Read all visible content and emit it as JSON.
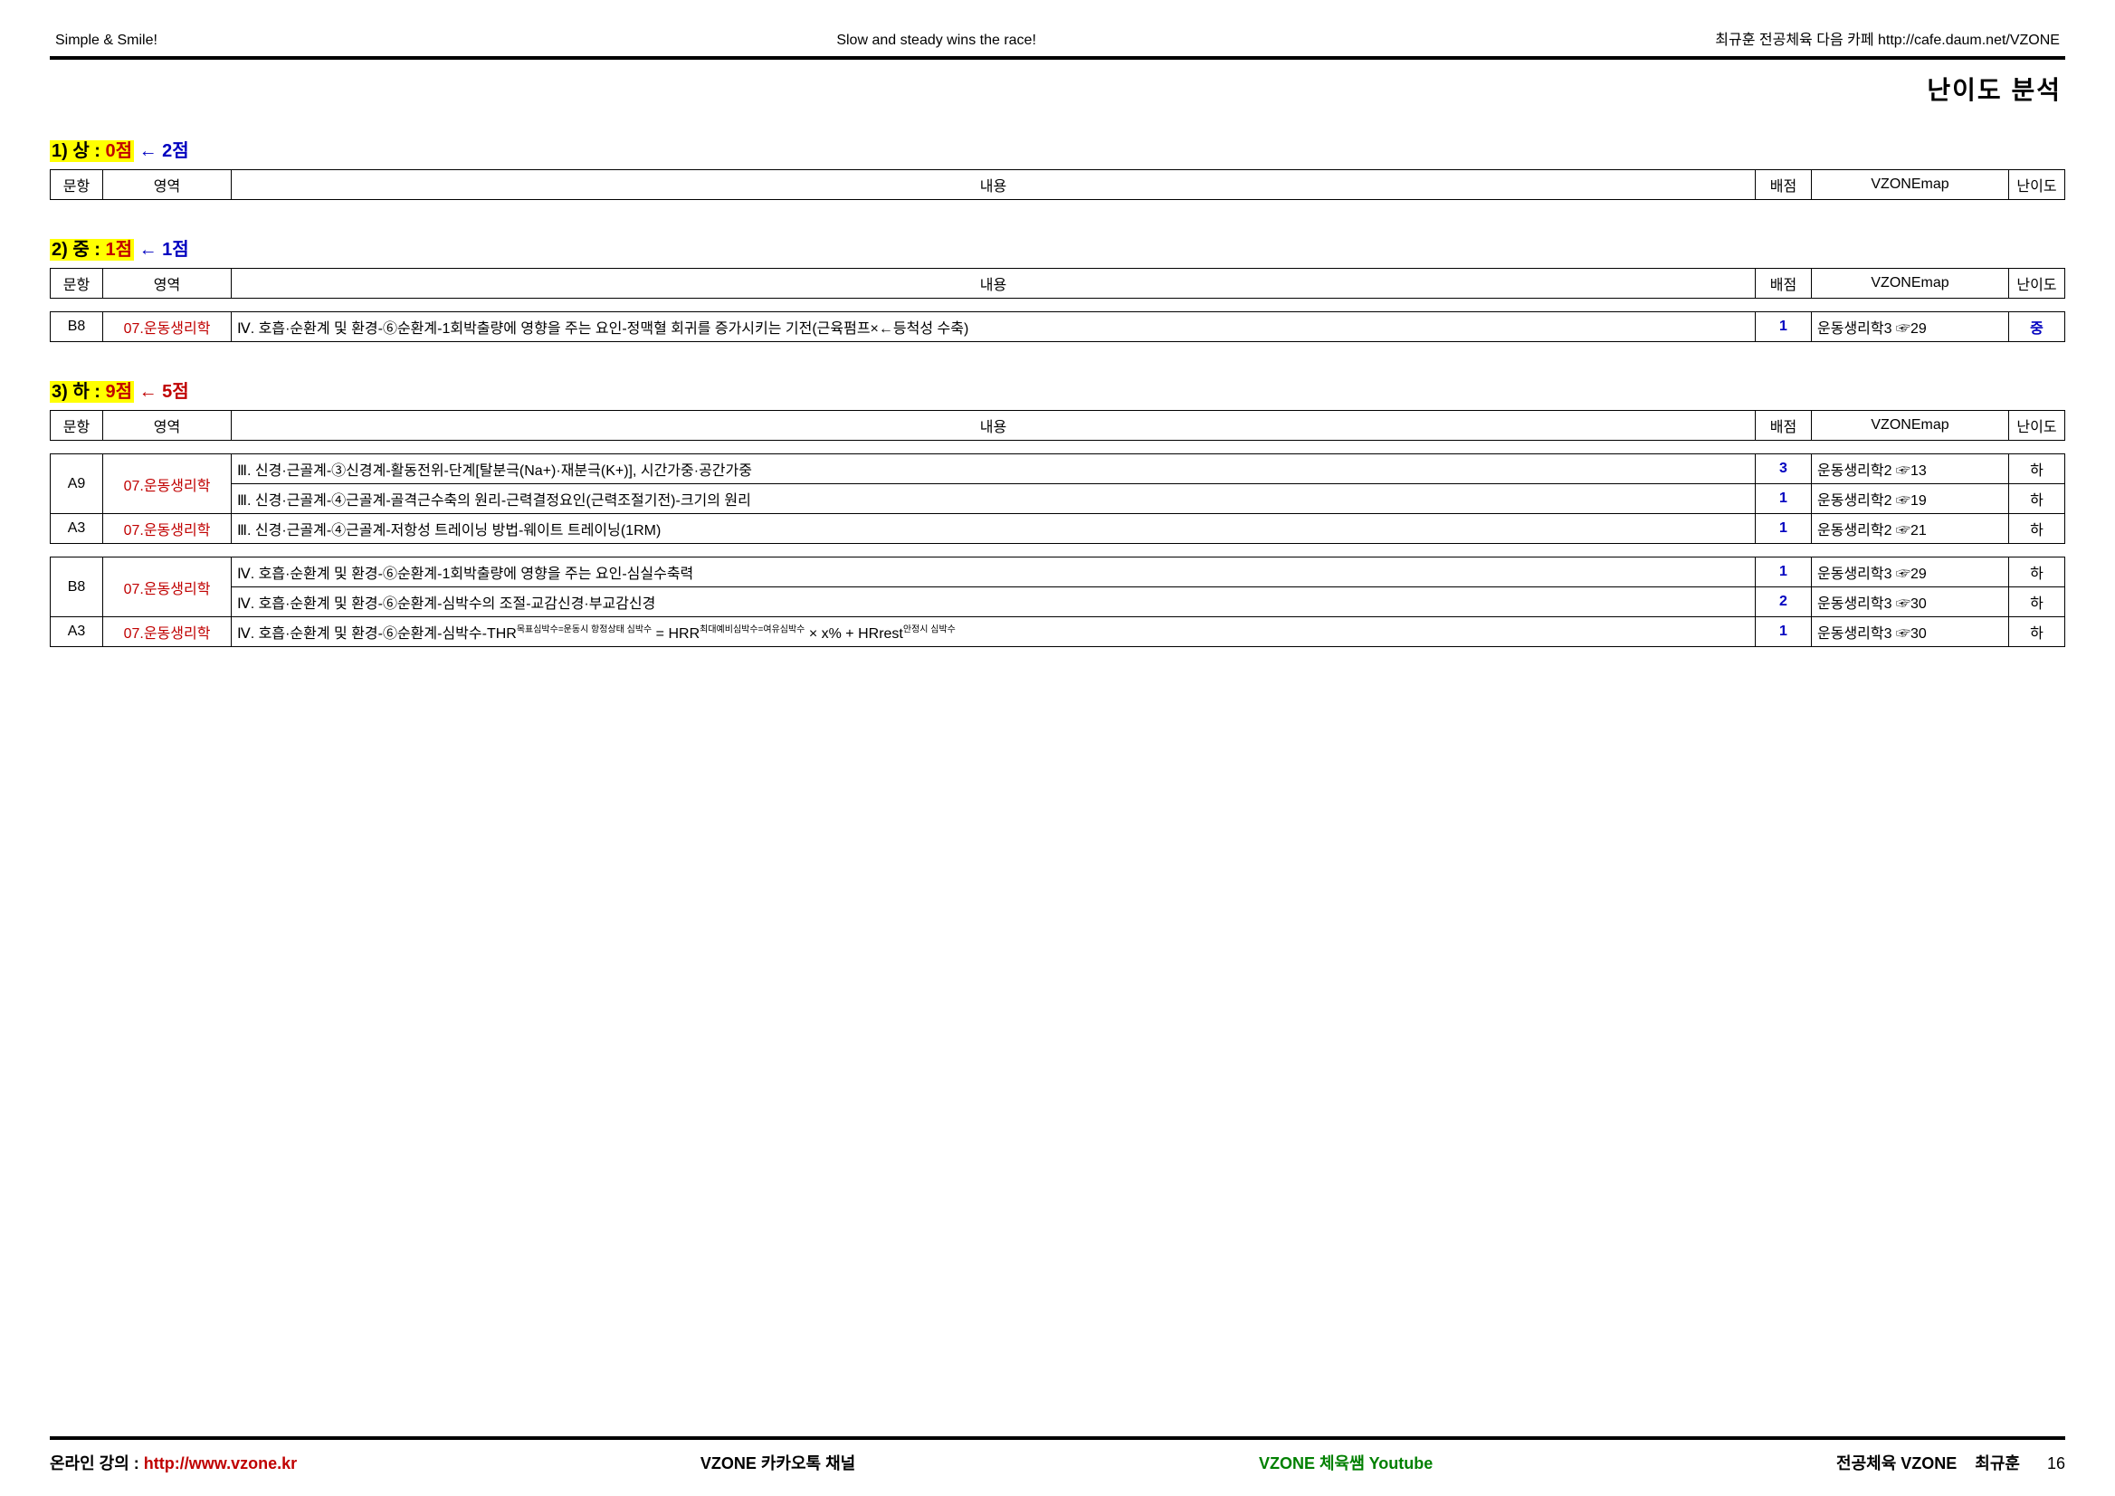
{
  "header": {
    "left": "Simple & Smile!",
    "center": "Slow and steady wins the race!",
    "right": "최규훈 전공체육 다음 카페 http://cafe.daum.net/VZONE"
  },
  "page_title": "난이도 분석",
  "columns": {
    "q": "문항",
    "area": "영역",
    "content": "내용",
    "score": "배점",
    "map": "VZONEmap",
    "diff": "난이도"
  },
  "sections": [
    {
      "id": "s1",
      "hl_pre": "1) 상 : ",
      "hl_colored": "0점",
      "tail": " ← 2점",
      "tail_color": "blue",
      "groups": []
    },
    {
      "id": "s2",
      "hl_pre": "2) 중 : ",
      "hl_colored": "1점",
      "tail": " ← 1점",
      "tail_color": "blue",
      "groups": [
        {
          "rows": [
            {
              "q": "B8",
              "area": "07.운동생리학",
              "content": "Ⅳ. 호흡·순환계 및 환경-⑥순환계-1회박출량에 영향을 주는 요인-정맥혈 회귀를 증가시키는 기전(근육펌프×←등척성 수축)",
              "score": "1",
              "map": "운동생리학3 ☞29",
              "diff": "중",
              "diff_class": "diff-blue"
            }
          ]
        }
      ]
    },
    {
      "id": "s3",
      "hl_pre": "3) 하 : ",
      "hl_colored": "9점",
      "tail": " ← 5점",
      "tail_color": "red",
      "groups": [
        {
          "rows": [
            {
              "q": "A9",
              "area": "07.운동생리학",
              "area_rowspan": 2,
              "q_rowspan": 2,
              "content": "Ⅲ. 신경·근골계-③신경계-활동전위-단계[탈분극(Na+)·재분극(K+)], 시간가중·공간가중",
              "score": "3",
              "map": "운동생리학2 ☞13",
              "diff": "하",
              "diff_class": "diff-black",
              "dashed_bottom": true
            },
            {
              "content": "Ⅲ. 신경·근골계-④근골계-골격근수축의 원리-근력결정요인(근력조절기전)-크기의 원리",
              "score": "1",
              "map": "운동생리학2 ☞19",
              "diff": "하",
              "diff_class": "diff-black",
              "dashed_top": true
            },
            {
              "q": "A3",
              "area": "07.운동생리학",
              "content": "Ⅲ. 신경·근골계-④근골계-저항성 트레이닝 방법-웨이트 트레이닝(1RM)",
              "score": "1",
              "map": "운동생리학2 ☞21",
              "diff": "하",
              "diff_class": "diff-black"
            }
          ]
        },
        {
          "rows": [
            {
              "q": "B8",
              "area": "07.운동생리학",
              "area_rowspan": 2,
              "q_rowspan": 2,
              "content": "Ⅳ. 호흡·순환계 및 환경-⑥순환계-1회박출량에 영향을 주는 요인-심실수축력",
              "score": "1",
              "map": "운동생리학3 ☞29",
              "diff": "하",
              "diff_class": "diff-black",
              "dashed_bottom": true
            },
            {
              "content": "Ⅳ. 호흡·순환계 및 환경-⑥순환계-심박수의 조절-교감신경·부교감신경",
              "score": "2",
              "map": "운동생리학3 ☞30",
              "diff": "하",
              "diff_class": "diff-black",
              "dashed_top": true
            },
            {
              "q": "A3",
              "area": "07.운동생리학",
              "content_html": "Ⅳ. 호흡·순환계 및 환경-⑥순환계-심박수-THR<span class='sup'>목표심박수=운동시 항정상태 심박수</span> = HRR<span class='sup'>최대예비심박수=여유심박수</span> × x% + HRrest<span class='sup'>안정시 심박수</span>",
              "score": "1",
              "map": "운동생리학3 ☞30",
              "diff": "하",
              "diff_class": "diff-black"
            }
          ]
        }
      ]
    }
  ],
  "footer": {
    "left_label": "온라인 강의 : ",
    "left_url": "http://www.vzone.kr",
    "center1": "VZONE 카카오톡 채널",
    "center2": "VZONE 체육쌤 Youtube",
    "right1": "전공체육 VZONE",
    "right2": "최규훈",
    "page": "16"
  }
}
